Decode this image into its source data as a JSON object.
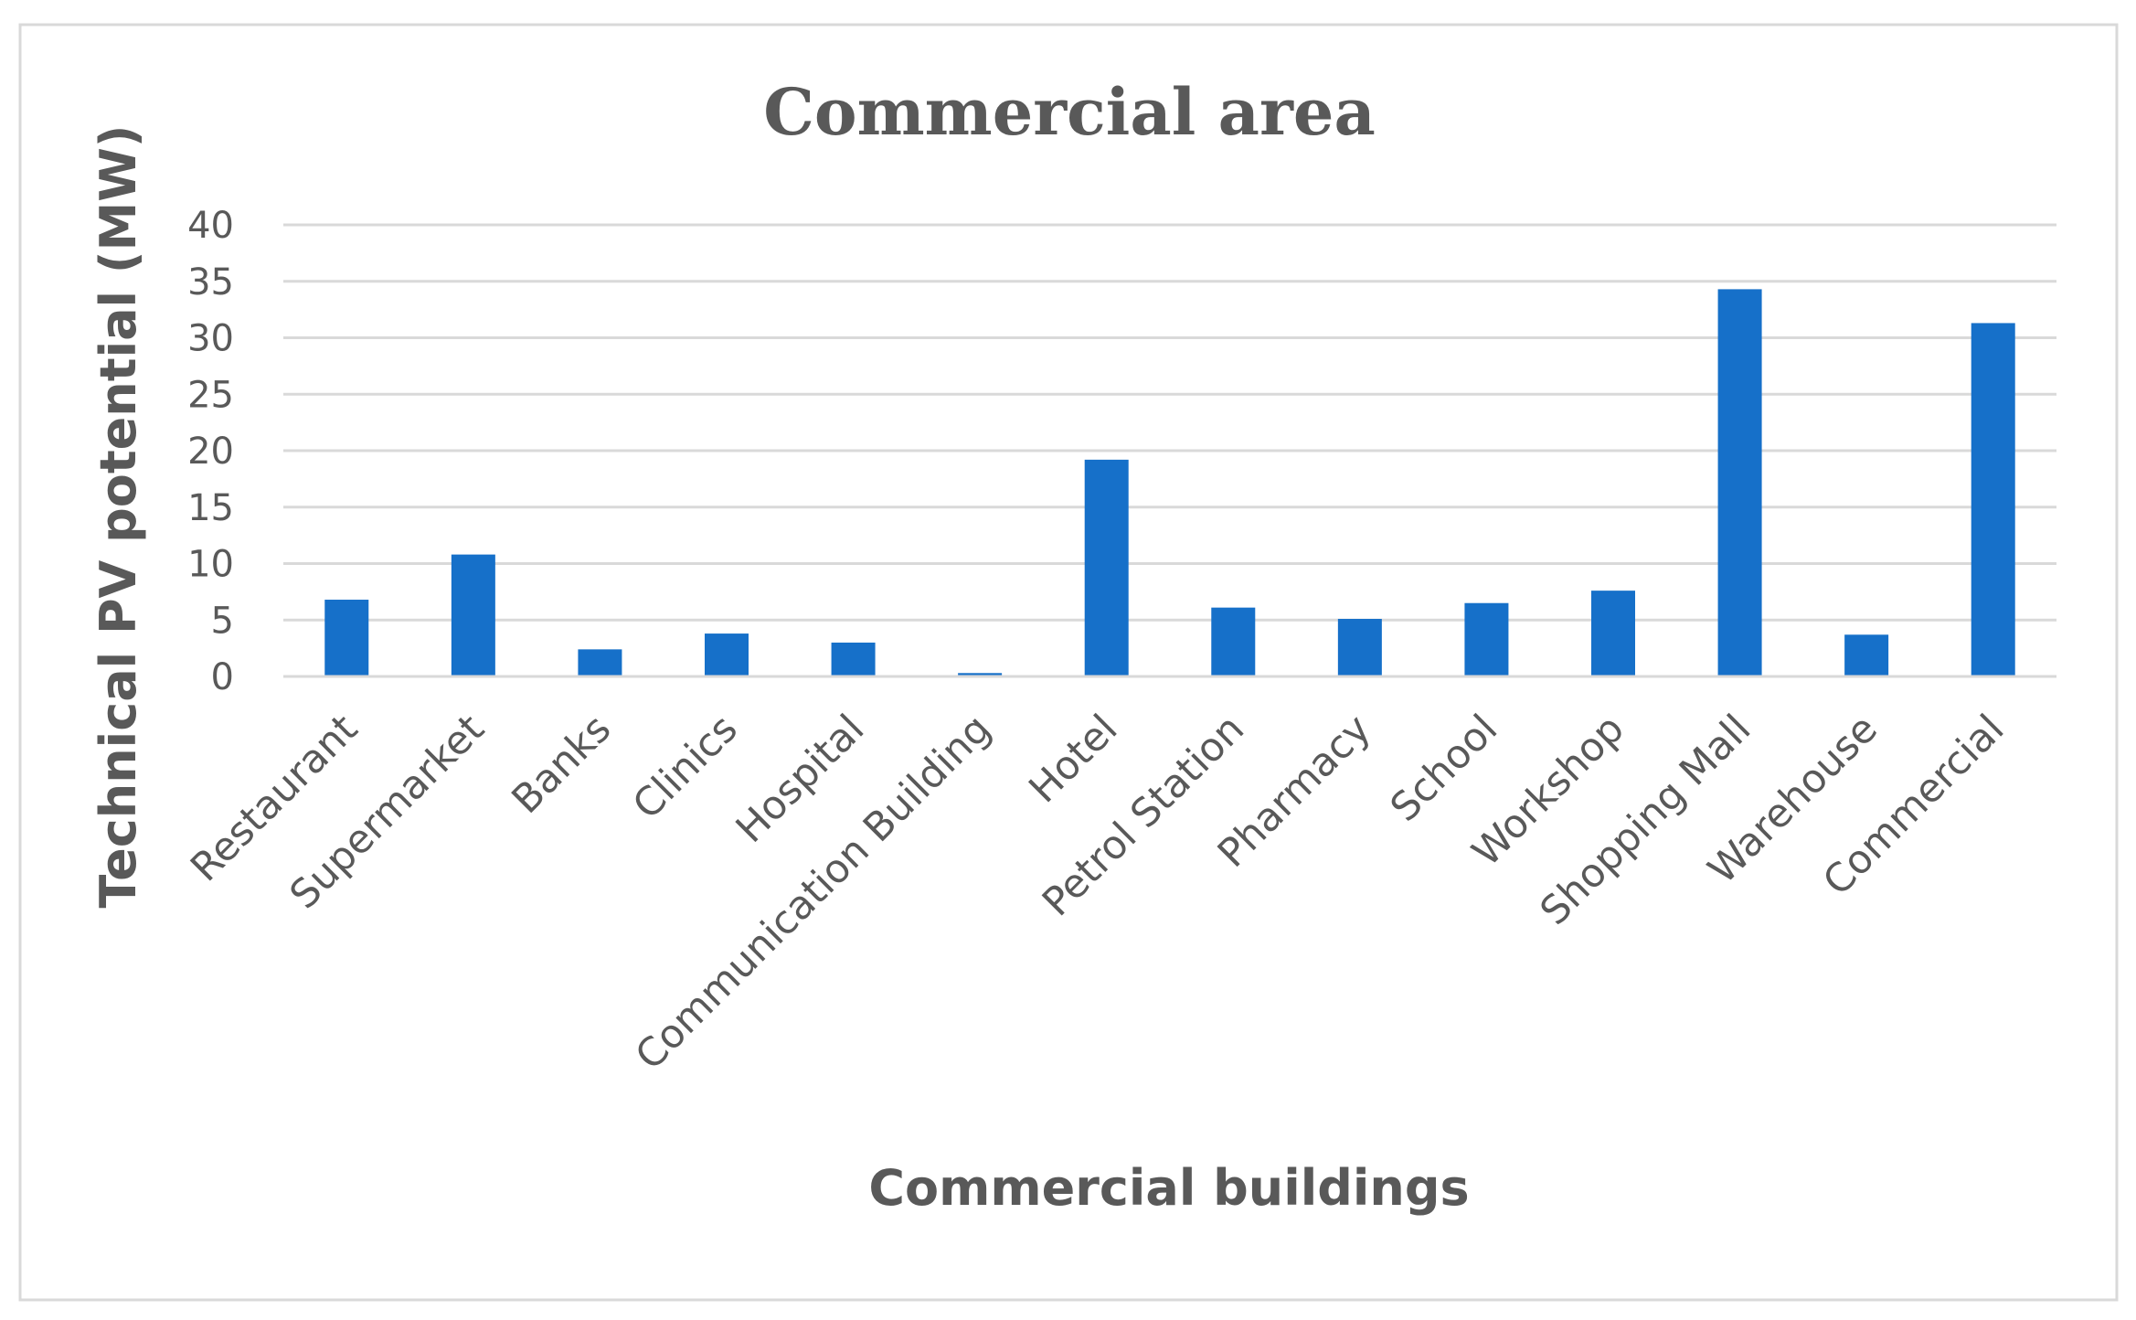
{
  "chart_data": {
    "type": "bar",
    "title": "Commercial area",
    "xlabel": "Commercial buildings",
    "ylabel": "Technical PV potential (MW)",
    "categories": [
      "Restaurant",
      "Supermarket",
      "Banks",
      "Clinics",
      "Hospital",
      "Communication Building",
      "Hotel",
      "Petrol Station",
      "Pharmacy",
      "School",
      "Workshop",
      "Shopping Mall",
      "Warehouse",
      "Commercial"
    ],
    "values": [
      6.8,
      10.8,
      2.4,
      3.8,
      3.0,
      0.3,
      19.2,
      6.1,
      5.1,
      6.5,
      7.6,
      34.3,
      3.7,
      31.3
    ],
    "ylim": [
      0,
      40
    ],
    "yticks": [
      0,
      5,
      10,
      15,
      20,
      25,
      30,
      35,
      40
    ],
    "grid": true,
    "legend": "none",
    "colors": {
      "bar": "#1670c9",
      "grid": "#d9d9d9",
      "text": "#595959"
    }
  }
}
